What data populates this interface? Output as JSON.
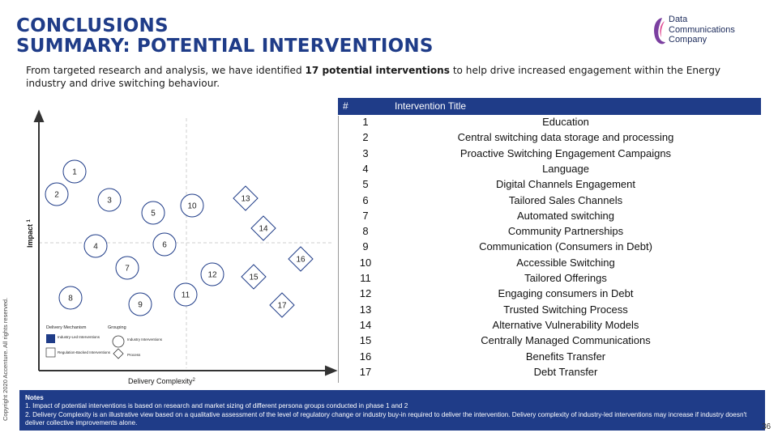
{
  "header": {
    "title_line1": "CONCLUSIONS",
    "title_line2": "SUMMARY: POTENTIAL INTERVENTIONS"
  },
  "logo": {
    "line1": "Data",
    "line2": "Communications",
    "line3": "Company",
    "color": "#7b3fa0"
  },
  "intro": {
    "before": "From targeted research and analysis, we have identified ",
    "bold": "17 potential interventions",
    "after": " to help drive increased engagement within the Energy industry and drive switching behaviour."
  },
  "copyright": "Copyright 2020 Accenture. All rights reserved.",
  "matrix": {
    "y_label": "Impact",
    "y_sup": "1",
    "x_label": "Delivery Complexity",
    "x_sup": "2",
    "accent": "#1f3c88",
    "points": [
      {
        "label": "1",
        "shape": "circle"
      },
      {
        "label": "2",
        "shape": "circle"
      },
      {
        "label": "3",
        "shape": "circle"
      },
      {
        "label": "4",
        "shape": "circle"
      },
      {
        "label": "5",
        "shape": "circle"
      },
      {
        "label": "6",
        "shape": "circle"
      },
      {
        "label": "7",
        "shape": "circle"
      },
      {
        "label": "8",
        "shape": "circle"
      },
      {
        "label": "9",
        "shape": "circle"
      },
      {
        "label": "10",
        "shape": "circle"
      },
      {
        "label": "11",
        "shape": "circle"
      },
      {
        "label": "12",
        "shape": "circle"
      },
      {
        "label": "13",
        "shape": "diamond"
      },
      {
        "label": "14",
        "shape": "diamond"
      },
      {
        "label": "15",
        "shape": "diamond"
      },
      {
        "label": "16",
        "shape": "diamond"
      },
      {
        "label": "17",
        "shape": "diamond"
      }
    ],
    "legend": {
      "mech_title": "Delivery Mechanism",
      "mech_items": [
        "Industry-Led Interventions",
        "Regulation-Backed Interventions"
      ],
      "group_title": "Grouping",
      "group_items": [
        "Industry Interventions",
        "Process"
      ]
    }
  },
  "table": {
    "col_num": "#",
    "col_title": "Intervention Title",
    "rows": [
      {
        "num": "1",
        "title": "Education"
      },
      {
        "num": "2",
        "title": "Central switching data storage and processing"
      },
      {
        "num": "3",
        "title": "Proactive Switching Engagement  Campaigns"
      },
      {
        "num": "4",
        "title": "Language"
      },
      {
        "num": "5",
        "title": "Digital Channels Engagement"
      },
      {
        "num": "6",
        "title": "Tailored Sales Channels"
      },
      {
        "num": "7",
        "title": "Automated switching"
      },
      {
        "num": "8",
        "title": "Community Partnerships"
      },
      {
        "num": "9",
        "title": "Communication (Consumers in Debt)"
      },
      {
        "num": "10",
        "title": "Accessible Switching"
      },
      {
        "num": "11",
        "title": "Tailored Offerings"
      },
      {
        "num": "12",
        "title": "Engaging consumers in Debt"
      },
      {
        "num": "13",
        "title": "Trusted Switching  Process"
      },
      {
        "num": "14",
        "title": "Alternative Vulnerability Models"
      },
      {
        "num": "15",
        "title": "Centrally Managed Communications"
      },
      {
        "num": "16",
        "title": "Benefits Transfer"
      },
      {
        "num": "17",
        "title": "Debt Transfer"
      }
    ]
  },
  "notes": {
    "heading": "Notes",
    "line1": "1. Impact of potential interventions is based on research and market sizing of different persona groups conducted in phase 1 and 2",
    "line2": "2. Delivery Complexity is an illustrative view based on a qualitative assessment of the level of regulatory change or industry buy-in required to deliver the intervention. Delivery complexity of industry-led interventions may increase if industry doesn't deliver collective improvements alone."
  },
  "page_number": "36"
}
